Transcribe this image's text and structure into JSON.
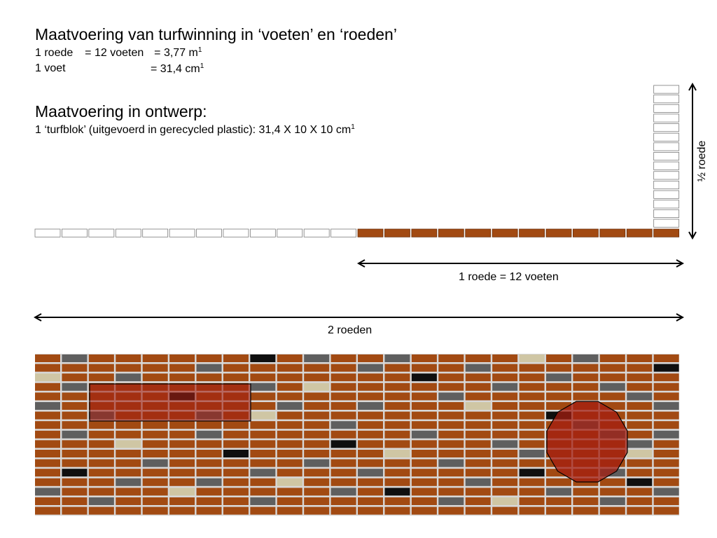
{
  "heading1": {
    "title": "Maatvoering van turfwinning in ‘voeten’ en ‘roeden’",
    "line1_left": "1 roede",
    "line1_mid": "= 12 voeten",
    "line1_right": "= 3,77 m",
    "line1_sup": "1",
    "line2_left": "1 voet",
    "line2_right": "= 31,4 cm",
    "line2_sup": "1"
  },
  "heading2": {
    "title": "Maatvoering in ontwerp:",
    "line1": "1 ‘turfblok’ (uitgevoerd in gerecycled plastic): 31,4 X 10 X 10 cm",
    "line1_sup": "1"
  },
  "dimensions": {
    "half_roede": "½ roede",
    "one_roede": "1 roede = 12 voeten",
    "two_roeden": "2 roeden"
  },
  "scale_row": {
    "white_blocks": 12,
    "brown_blocks": 12,
    "vertical_blocks": 15
  },
  "pattern": {
    "rows": 17,
    "cols": 24,
    "special_blocks": [
      {
        "row": 0,
        "col": 1,
        "type": "gray"
      },
      {
        "row": 0,
        "col": 8,
        "type": "black"
      },
      {
        "row": 0,
        "col": 10,
        "type": "gray"
      },
      {
        "row": 0,
        "col": 13,
        "type": "gray"
      },
      {
        "row": 0,
        "col": 18,
        "type": "beige"
      },
      {
        "row": 0,
        "col": 20,
        "type": "gray"
      },
      {
        "row": 1,
        "col": 6,
        "type": "gray"
      },
      {
        "row": 1,
        "col": 12,
        "type": "gray"
      },
      {
        "row": 1,
        "col": 16,
        "type": "gray"
      },
      {
        "row": 1,
        "col": 23,
        "type": "black"
      },
      {
        "row": 2,
        "col": 0,
        "type": "beige"
      },
      {
        "row": 2,
        "col": 3,
        "type": "gray"
      },
      {
        "row": 2,
        "col": 14,
        "type": "black"
      },
      {
        "row": 2,
        "col": 19,
        "type": "gray"
      },
      {
        "row": 3,
        "col": 1,
        "type": "gray"
      },
      {
        "row": 3,
        "col": 8,
        "type": "gray"
      },
      {
        "row": 3,
        "col": 10,
        "type": "beige"
      },
      {
        "row": 3,
        "col": 17,
        "type": "gray"
      },
      {
        "row": 3,
        "col": 21,
        "type": "gray"
      },
      {
        "row": 4,
        "col": 5,
        "type": "black"
      },
      {
        "row": 4,
        "col": 15,
        "type": "gray"
      },
      {
        "row": 4,
        "col": 22,
        "type": "gray"
      },
      {
        "row": 5,
        "col": 0,
        "type": "gray"
      },
      {
        "row": 5,
        "col": 9,
        "type": "gray"
      },
      {
        "row": 5,
        "col": 12,
        "type": "gray"
      },
      {
        "row": 5,
        "col": 16,
        "type": "beige"
      },
      {
        "row": 5,
        "col": 23,
        "type": "gray"
      },
      {
        "row": 6,
        "col": 2,
        "type": "gray"
      },
      {
        "row": 6,
        "col": 6,
        "type": "gray"
      },
      {
        "row": 6,
        "col": 8,
        "type": "beige"
      },
      {
        "row": 6,
        "col": 19,
        "type": "black"
      },
      {
        "row": 7,
        "col": 11,
        "type": "gray"
      },
      {
        "row": 7,
        "col": 20,
        "type": "gray"
      },
      {
        "row": 8,
        "col": 1,
        "type": "gray"
      },
      {
        "row": 8,
        "col": 6,
        "type": "gray"
      },
      {
        "row": 8,
        "col": 14,
        "type": "gray"
      },
      {
        "row": 8,
        "col": 21,
        "type": "gray"
      },
      {
        "row": 8,
        "col": 23,
        "type": "gray"
      },
      {
        "row": 9,
        "col": 3,
        "type": "beige"
      },
      {
        "row": 9,
        "col": 11,
        "type": "black"
      },
      {
        "row": 9,
        "col": 17,
        "type": "gray"
      },
      {
        "row": 9,
        "col": 22,
        "type": "gray"
      },
      {
        "row": 10,
        "col": 7,
        "type": "black"
      },
      {
        "row": 10,
        "col": 13,
        "type": "beige"
      },
      {
        "row": 10,
        "col": 18,
        "type": "gray"
      },
      {
        "row": 10,
        "col": 22,
        "type": "beige"
      },
      {
        "row": 11,
        "col": 4,
        "type": "gray"
      },
      {
        "row": 11,
        "col": 10,
        "type": "gray"
      },
      {
        "row": 11,
        "col": 15,
        "type": "gray"
      },
      {
        "row": 12,
        "col": 1,
        "type": "black"
      },
      {
        "row": 12,
        "col": 8,
        "type": "gray"
      },
      {
        "row": 12,
        "col": 12,
        "type": "gray"
      },
      {
        "row": 12,
        "col": 18,
        "type": "black"
      },
      {
        "row": 12,
        "col": 21,
        "type": "gray"
      },
      {
        "row": 13,
        "col": 3,
        "type": "gray"
      },
      {
        "row": 13,
        "col": 6,
        "type": "gray"
      },
      {
        "row": 13,
        "col": 9,
        "type": "beige"
      },
      {
        "row": 13,
        "col": 16,
        "type": "gray"
      },
      {
        "row": 13,
        "col": 22,
        "type": "black"
      },
      {
        "row": 14,
        "col": 0,
        "type": "gray"
      },
      {
        "row": 14,
        "col": 5,
        "type": "beige"
      },
      {
        "row": 14,
        "col": 11,
        "type": "gray"
      },
      {
        "row": 14,
        "col": 13,
        "type": "black"
      },
      {
        "row": 14,
        "col": 19,
        "type": "gray"
      },
      {
        "row": 14,
        "col": 23,
        "type": "gray"
      },
      {
        "row": 15,
        "col": 2,
        "type": "gray"
      },
      {
        "row": 15,
        "col": 8,
        "type": "gray"
      },
      {
        "row": 15,
        "col": 15,
        "type": "gray"
      },
      {
        "row": 15,
        "col": 17,
        "type": "beige"
      },
      {
        "row": 15,
        "col": 21,
        "type": "gray"
      }
    ]
  },
  "colors": {
    "brick": "#a24a12",
    "grout": "#d8d8d8",
    "gray": "#5f5f5f",
    "black": "#0f0f0f",
    "beige": "#cfc6a4",
    "overlay": "#a41e10",
    "white_block_border": "#7a7a7a"
  }
}
